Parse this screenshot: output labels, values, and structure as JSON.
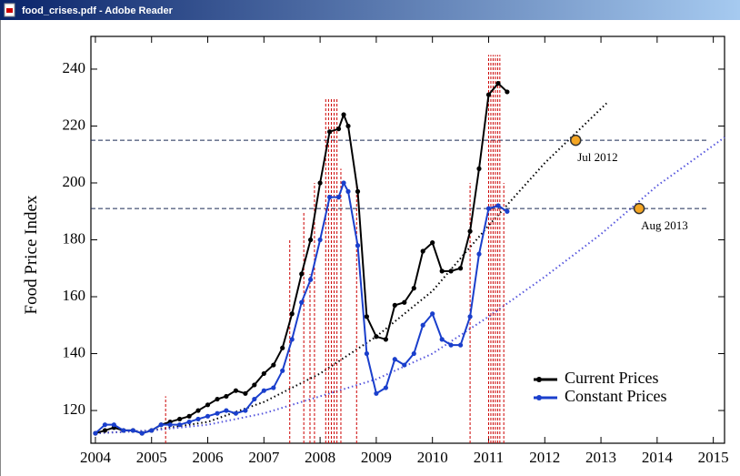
{
  "window": {
    "title": "food_crises.pdf - Adobe Reader"
  },
  "chart_data": {
    "type": "line",
    "ylabel": "Food Price Index",
    "xlim": [
      2003.92,
      2015.2
    ],
    "ylim": [
      108.5,
      251.5
    ],
    "xticks": [
      2004,
      2005,
      2006,
      2007,
      2008,
      2009,
      2010,
      2011,
      2012,
      2013,
      2014,
      2015
    ],
    "yticks": [
      120,
      140,
      160,
      180,
      200,
      220,
      240
    ],
    "legend": "lower right",
    "x": [
      2004.0,
      2004.17,
      2004.33,
      2004.5,
      2004.67,
      2004.83,
      2005.0,
      2005.17,
      2005.33,
      2005.5,
      2005.67,
      2005.83,
      2006.0,
      2006.17,
      2006.33,
      2006.5,
      2006.67,
      2006.83,
      2007.0,
      2007.17,
      2007.33,
      2007.5,
      2007.67,
      2007.83,
      2008.0,
      2008.17,
      2008.33,
      2008.42,
      2008.5,
      2008.67,
      2008.83,
      2009.0,
      2009.17,
      2009.33,
      2009.5,
      2009.67,
      2009.83,
      2010.0,
      2010.17,
      2010.33,
      2010.5,
      2010.67,
      2010.83,
      2011.0,
      2011.17,
      2011.33
    ],
    "series": [
      {
        "name": "Current Prices",
        "color": "#000000",
        "values": [
          112,
          113,
          114,
          113,
          113,
          112,
          113,
          115,
          116,
          117,
          118,
          120,
          122,
          124,
          125,
          127,
          126,
          129,
          133,
          136,
          142,
          154,
          168,
          180,
          200,
          218,
          219,
          224,
          220,
          197,
          153,
          146,
          145,
          157,
          158,
          163,
          176,
          179,
          169,
          169,
          170,
          183,
          205,
          231,
          235,
          232
        ]
      },
      {
        "name": "Constant Prices",
        "color": "#1a3fcc",
        "values": [
          112,
          115,
          115,
          113,
          113,
          112,
          113,
          115,
          115,
          115,
          116,
          117,
          118,
          119,
          120,
          119,
          120,
          124,
          127,
          128,
          134,
          145,
          158,
          166,
          180,
          195,
          195,
          200,
          197,
          178,
          140,
          126,
          128,
          138,
          136,
          140,
          150,
          154,
          145,
          143,
          143,
          153,
          175,
          191,
          192,
          190
        ]
      }
    ],
    "trends": [
      {
        "color": "#000000",
        "x": [
          2004,
          2005,
          2006,
          2007,
          2008,
          2009,
          2010,
          2011,
          2012,
          2013.1
        ],
        "values": [
          112,
          113,
          116,
          123,
          133,
          146,
          162,
          185,
          207,
          228
        ]
      },
      {
        "color": "#5555dd",
        "x": [
          2004,
          2005,
          2006,
          2007,
          2008,
          2009,
          2010,
          2011,
          2012,
          2013,
          2014,
          2015.2
        ],
        "values": [
          112,
          113,
          115,
          119,
          125,
          131,
          140,
          153,
          167,
          182,
          199,
          216
        ]
      }
    ],
    "hlines": {
      "color": "#1a2a55",
      "values": [
        215,
        191
      ]
    },
    "events": {
      "color": "#cc0000",
      "x": [
        2005.25,
        2007.46,
        2007.71,
        2007.82,
        2007.9,
        2008.1,
        2008.15,
        2008.2,
        2008.25,
        2008.3,
        2008.37,
        2008.65,
        2010.67,
        2011.0,
        2011.04,
        2011.08,
        2011.12,
        2011.16,
        2011.2,
        2011.27
      ],
      "top": [
        125,
        180,
        190,
        168,
        200,
        230,
        230,
        230,
        230,
        230,
        205,
        200,
        200,
        245,
        245,
        245,
        245,
        245,
        245,
        200
      ]
    },
    "markers": [
      {
        "x": 2012.55,
        "y": 215,
        "label": "Jul 2012"
      },
      {
        "x": 2013.68,
        "y": 191,
        "label": "Aug 2013"
      }
    ],
    "marker_color": "#f5a623"
  }
}
